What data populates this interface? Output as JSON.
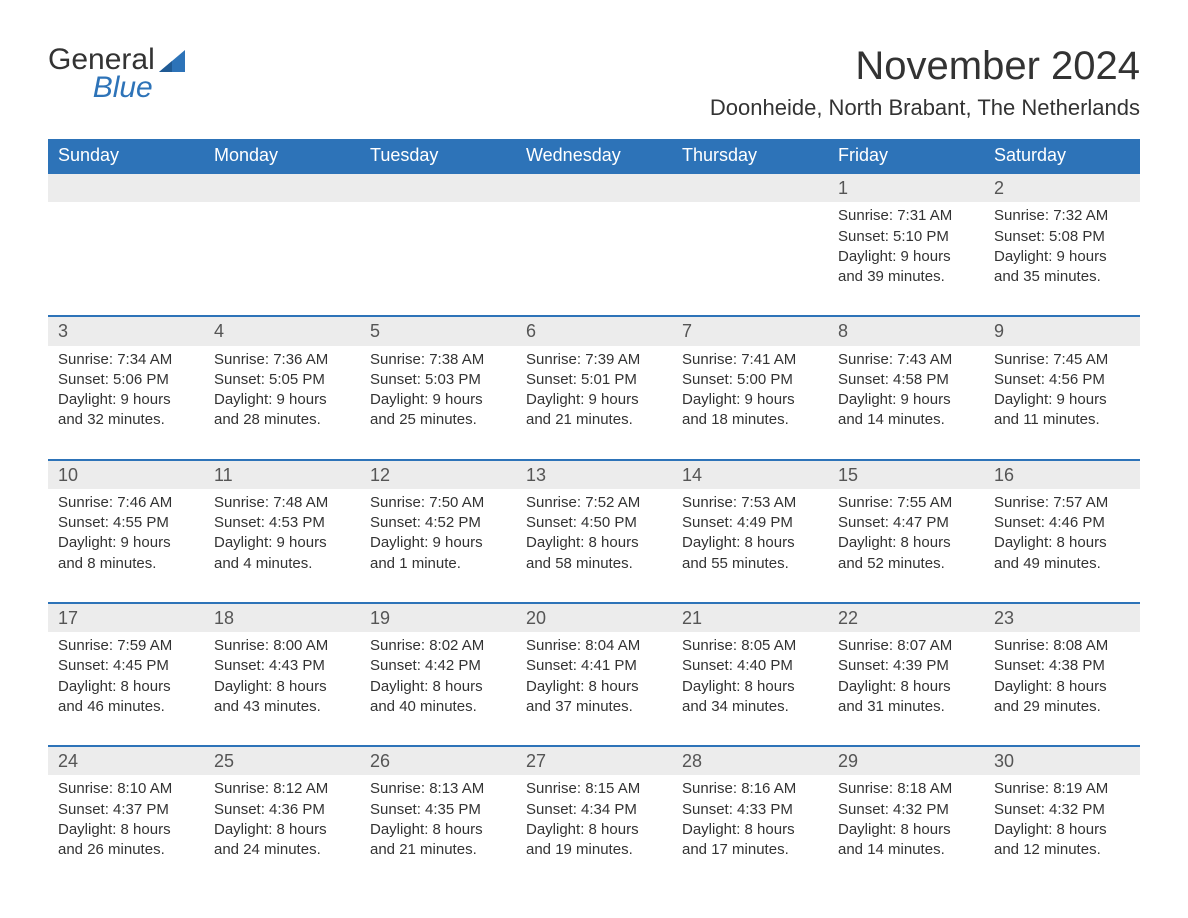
{
  "brand": {
    "line1": "General",
    "line2": "Blue"
  },
  "colors": {
    "header_bg": "#2d73b8",
    "header_text": "#ffffff",
    "date_strip_bg": "#ececec",
    "rule": "#2d73b8",
    "body_text": "#333333",
    "page_bg": "#ffffff"
  },
  "typography": {
    "month_title_pt": 40,
    "location_pt": 22,
    "day_header_pt": 18,
    "date_number_pt": 18,
    "body_pt": 15,
    "logo_pt": 30
  },
  "title": "November 2024",
  "location": "Doonheide, North Brabant, The Netherlands",
  "day_names": [
    "Sunday",
    "Monday",
    "Tuesday",
    "Wednesday",
    "Thursday",
    "Friday",
    "Saturday"
  ],
  "labels": {
    "sunrise": "Sunrise: ",
    "sunset": "Sunset: ",
    "daylight": "Daylight: "
  },
  "weeks": [
    [
      null,
      null,
      null,
      null,
      null,
      {
        "d": "1",
        "sunrise": "7:31 AM",
        "sunset": "5:10 PM",
        "daylight": "9 hours and 39 minutes."
      },
      {
        "d": "2",
        "sunrise": "7:32 AM",
        "sunset": "5:08 PM",
        "daylight": "9 hours and 35 minutes."
      }
    ],
    [
      {
        "d": "3",
        "sunrise": "7:34 AM",
        "sunset": "5:06 PM",
        "daylight": "9 hours and 32 minutes."
      },
      {
        "d": "4",
        "sunrise": "7:36 AM",
        "sunset": "5:05 PM",
        "daylight": "9 hours and 28 minutes."
      },
      {
        "d": "5",
        "sunrise": "7:38 AM",
        "sunset": "5:03 PM",
        "daylight": "9 hours and 25 minutes."
      },
      {
        "d": "6",
        "sunrise": "7:39 AM",
        "sunset": "5:01 PM",
        "daylight": "9 hours and 21 minutes."
      },
      {
        "d": "7",
        "sunrise": "7:41 AM",
        "sunset": "5:00 PM",
        "daylight": "9 hours and 18 minutes."
      },
      {
        "d": "8",
        "sunrise": "7:43 AM",
        "sunset": "4:58 PM",
        "daylight": "9 hours and 14 minutes."
      },
      {
        "d": "9",
        "sunrise": "7:45 AM",
        "sunset": "4:56 PM",
        "daylight": "9 hours and 11 minutes."
      }
    ],
    [
      {
        "d": "10",
        "sunrise": "7:46 AM",
        "sunset": "4:55 PM",
        "daylight": "9 hours and 8 minutes."
      },
      {
        "d": "11",
        "sunrise": "7:48 AM",
        "sunset": "4:53 PM",
        "daylight": "9 hours and 4 minutes."
      },
      {
        "d": "12",
        "sunrise": "7:50 AM",
        "sunset": "4:52 PM",
        "daylight": "9 hours and 1 minute."
      },
      {
        "d": "13",
        "sunrise": "7:52 AM",
        "sunset": "4:50 PM",
        "daylight": "8 hours and 58 minutes."
      },
      {
        "d": "14",
        "sunrise": "7:53 AM",
        "sunset": "4:49 PM",
        "daylight": "8 hours and 55 minutes."
      },
      {
        "d": "15",
        "sunrise": "7:55 AM",
        "sunset": "4:47 PM",
        "daylight": "8 hours and 52 minutes."
      },
      {
        "d": "16",
        "sunrise": "7:57 AM",
        "sunset": "4:46 PM",
        "daylight": "8 hours and 49 minutes."
      }
    ],
    [
      {
        "d": "17",
        "sunrise": "7:59 AM",
        "sunset": "4:45 PM",
        "daylight": "8 hours and 46 minutes."
      },
      {
        "d": "18",
        "sunrise": "8:00 AM",
        "sunset": "4:43 PM",
        "daylight": "8 hours and 43 minutes."
      },
      {
        "d": "19",
        "sunrise": "8:02 AM",
        "sunset": "4:42 PM",
        "daylight": "8 hours and 40 minutes."
      },
      {
        "d": "20",
        "sunrise": "8:04 AM",
        "sunset": "4:41 PM",
        "daylight": "8 hours and 37 minutes."
      },
      {
        "d": "21",
        "sunrise": "8:05 AM",
        "sunset": "4:40 PM",
        "daylight": "8 hours and 34 minutes."
      },
      {
        "d": "22",
        "sunrise": "8:07 AM",
        "sunset": "4:39 PM",
        "daylight": "8 hours and 31 minutes."
      },
      {
        "d": "23",
        "sunrise": "8:08 AM",
        "sunset": "4:38 PM",
        "daylight": "8 hours and 29 minutes."
      }
    ],
    [
      {
        "d": "24",
        "sunrise": "8:10 AM",
        "sunset": "4:37 PM",
        "daylight": "8 hours and 26 minutes."
      },
      {
        "d": "25",
        "sunrise": "8:12 AM",
        "sunset": "4:36 PM",
        "daylight": "8 hours and 24 minutes."
      },
      {
        "d": "26",
        "sunrise": "8:13 AM",
        "sunset": "4:35 PM",
        "daylight": "8 hours and 21 minutes."
      },
      {
        "d": "27",
        "sunrise": "8:15 AM",
        "sunset": "4:34 PM",
        "daylight": "8 hours and 19 minutes."
      },
      {
        "d": "28",
        "sunrise": "8:16 AM",
        "sunset": "4:33 PM",
        "daylight": "8 hours and 17 minutes."
      },
      {
        "d": "29",
        "sunrise": "8:18 AM",
        "sunset": "4:32 PM",
        "daylight": "8 hours and 14 minutes."
      },
      {
        "d": "30",
        "sunrise": "8:19 AM",
        "sunset": "4:32 PM",
        "daylight": "8 hours and 12 minutes."
      }
    ]
  ]
}
